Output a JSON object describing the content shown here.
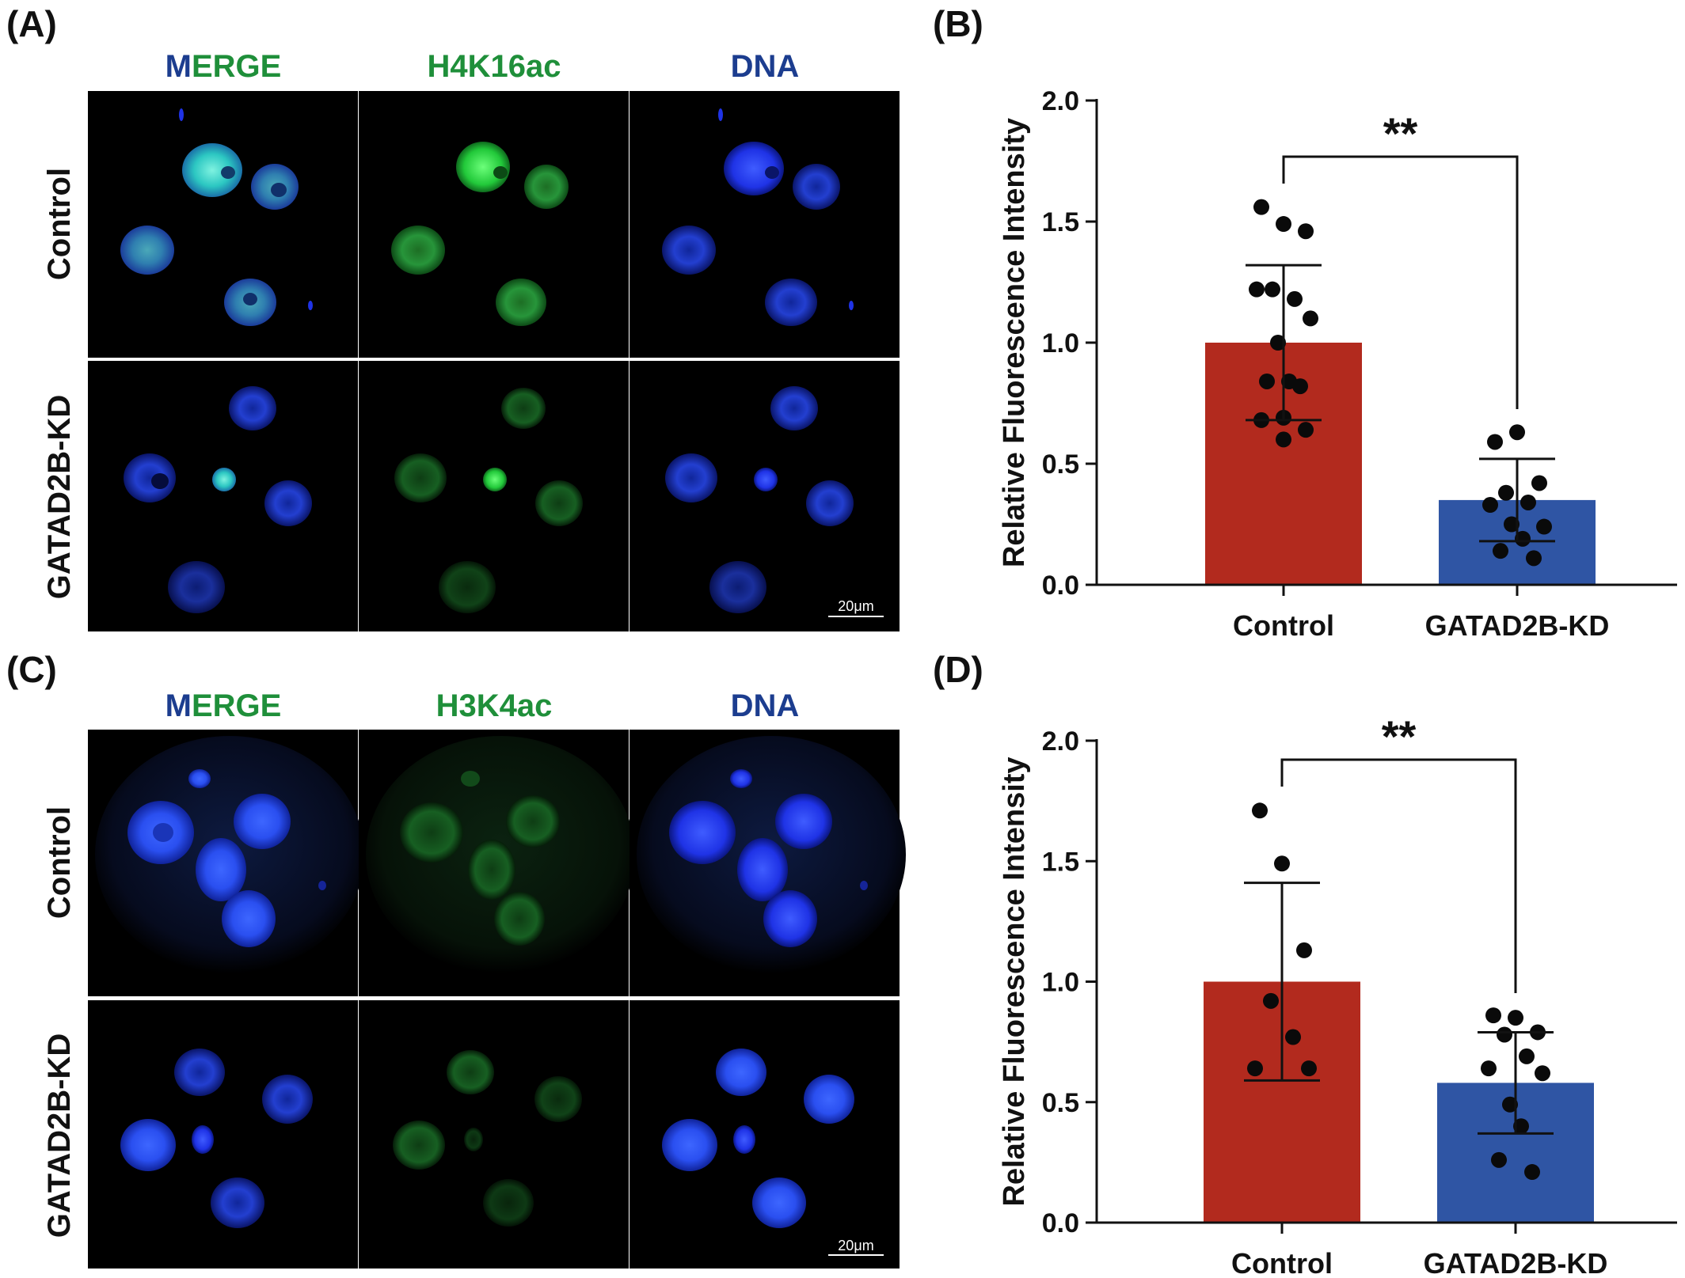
{
  "panels": {
    "A": {
      "label": "(A)",
      "title_merge_1": "M",
      "title_merge_2": "ERGE",
      "title_marker": "H4K16ac",
      "title_dna": "DNA",
      "row_control": "Control",
      "row_kd": "GATAD2B-KD",
      "scale": "20μm"
    },
    "B": {
      "label": "(B)"
    },
    "C": {
      "label": "(C)",
      "title_merge_1": "M",
      "title_merge_2": "ERGE",
      "title_marker": "H3K4ac",
      "title_dna": "DNA",
      "row_control": "Control",
      "row_kd": "GATAD2B-KD",
      "scale": "20μm"
    },
    "D": {
      "label": "(D)"
    }
  },
  "colors": {
    "control_bar": "#b22a1e",
    "kd_bar": "#2f55a4",
    "merge_dark": "#1c3d8f",
    "merge_green": "#1f8f3a",
    "marker_green": "#1f8f3a",
    "dna_blue": "#1c3d8f"
  },
  "chart_data": [
    {
      "type": "bar",
      "panel": "B",
      "categories": [
        "Control",
        "GATAD2B-KD"
      ],
      "values": [
        1.0,
        0.35
      ],
      "error": [
        0.32,
        0.17
      ],
      "points": [
        [
          1.56,
          1.49,
          1.46,
          1.22,
          1.18,
          1.22,
          1.1,
          1.0,
          0.84,
          0.84,
          0.82,
          0.69,
          0.68,
          0.64,
          0.6
        ],
        [
          0.59,
          0.63,
          0.42,
          0.38,
          0.34,
          0.33,
          0.24,
          0.25,
          0.19,
          0.14,
          0.11
        ]
      ],
      "xlabel": "",
      "ylabel": "Relative Fluorescence Intensity",
      "ylim": [
        0,
        2.0
      ],
      "yticks": [
        "0.0",
        "0.5",
        "1.0",
        "1.5",
        "2.0"
      ],
      "significance": "**"
    },
    {
      "type": "bar",
      "panel": "D",
      "categories": [
        "Control",
        "GATAD2B-KD"
      ],
      "values": [
        1.0,
        0.58
      ],
      "error": [
        0.41,
        0.21
      ],
      "points": [
        [
          1.71,
          1.49,
          1.13,
          0.92,
          0.77,
          0.64,
          0.64
        ],
        [
          0.86,
          0.85,
          0.79,
          0.78,
          0.69,
          0.64,
          0.62,
          0.49,
          0.4,
          0.26,
          0.21
        ]
      ],
      "xlabel": "",
      "ylabel": "Relative Fluorescence Intensity",
      "ylim": [
        0,
        2.0
      ],
      "yticks": [
        "0.0",
        "0.5",
        "1.0",
        "1.5",
        "2.0"
      ],
      "significance": "**"
    }
  ]
}
